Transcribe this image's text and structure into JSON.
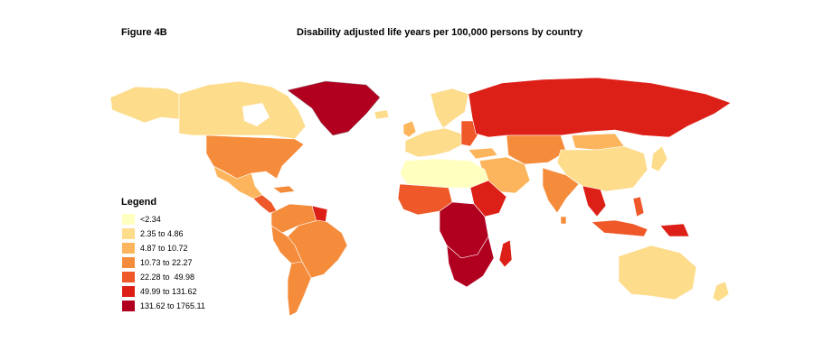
{
  "figure_label": "Figure 4B",
  "title": "Disability adjusted life years per 100,000 persons by country",
  "legend": {
    "title": "Legend",
    "items": [
      {
        "label": "<2.34",
        "color": "#ffffc0"
      },
      {
        "label": "2.35 to 4.86",
        "color": "#fddc8b"
      },
      {
        "label": "4.87 to 10.72",
        "color": "#fcb55c"
      },
      {
        "label": "10.73 to 22.27",
        "color": "#f58c3c"
      },
      {
        "label": "22.28 to  49.98",
        "color": "#ef5828"
      },
      {
        "label": "49.99 to 131.62",
        "color": "#dd2017"
      },
      {
        "label": "131.62 to 1765.11",
        "color": "#b1001f"
      }
    ]
  },
  "no_data_color": "#ffffff"
}
